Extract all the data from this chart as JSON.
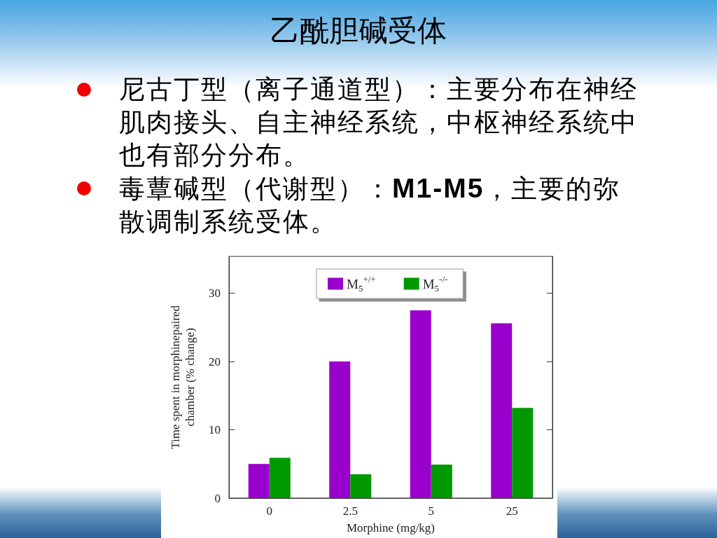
{
  "chart_data": {
    "type": "bar",
    "title": "乙酰胆碱受体",
    "annotations": [
      "尼古丁型（离子通道型）：主要分布在神经肌肉接头、自主神经系统，中枢神经系统中也有部分分布。",
      "毒蕈碱型（代谢型）：M1-M5，主要的弥散调制系统受体。"
    ],
    "categories": [
      "0",
      "2.5",
      "5",
      "25"
    ],
    "series": [
      {
        "name": "M$_{5}$$^{+/+}$",
        "color": "#9900cc",
        "values": [
          5,
          20,
          27.5,
          25.6
        ]
      },
      {
        "name": "M$_{5}$$^{-/-}$",
        "color": "#009900",
        "values": [
          5.9,
          3.5,
          4.9,
          13.2
        ]
      }
    ],
    "xlabel": "Morphine (mg/kg)",
    "ylabel": "Time spent in morphinepaired\nchamber (% change)",
    "ylim": [
      0,
      35.4
    ],
    "yticks": [
      0,
      10,
      20,
      30
    ],
    "grid": false,
    "legend": "top"
  }
}
